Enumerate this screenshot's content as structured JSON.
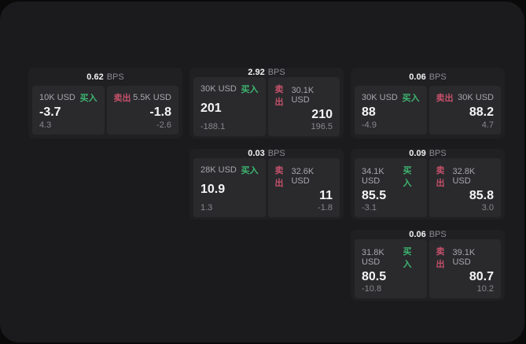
{
  "page": {
    "background": "#0a0a0a",
    "surface_background": "#1b1b1d"
  },
  "colors": {
    "buy_accent": "#3db670",
    "sell_accent": "#c4506a",
    "card_background": "#202023",
    "panel_background": "#2a2a2d",
    "primary_text": "#f5f5f6",
    "muted_text": "#8b8b90"
  },
  "labels": {
    "bps_unit": "BPS",
    "buy": "买入",
    "sell": "卖出"
  },
  "cards": [
    {
      "col": 1,
      "row": 1,
      "bps": "0.62",
      "buy": {
        "amount": "10K USD",
        "price": "-3.7",
        "delta": "4.3"
      },
      "sell": {
        "amount": "5.5K USD",
        "price": "-1.8",
        "delta": "-2.6"
      }
    },
    {
      "col": 2,
      "row": 1,
      "bps": "2.92",
      "buy": {
        "amount": "30K USD",
        "price": "201",
        "delta": "-188.1"
      },
      "sell": {
        "amount": "30.1K USD",
        "price": "210",
        "delta": "196.5"
      }
    },
    {
      "col": 3,
      "row": 1,
      "bps": "0.06",
      "buy": {
        "amount": "30K USD",
        "price": "88",
        "delta": "-4.9"
      },
      "sell": {
        "amount": "30K USD",
        "price": "88.2",
        "delta": "4.7"
      }
    },
    {
      "col": 2,
      "row": 2,
      "bps": "0.03",
      "buy": {
        "amount": "28K USD",
        "price": "10.9",
        "delta": "1.3"
      },
      "sell": {
        "amount": "32.6K USD",
        "price": "11",
        "delta": "-1.8"
      }
    },
    {
      "col": 3,
      "row": 2,
      "bps": "0.09",
      "buy": {
        "amount": "34.1K USD",
        "price": "85.5",
        "delta": "-3.1"
      },
      "sell": {
        "amount": "32.8K USD",
        "price": "85.8",
        "delta": "3.0"
      }
    },
    {
      "col": 3,
      "row": 3,
      "bps": "0.06",
      "buy": {
        "amount": "31.8K USD",
        "price": "80.5",
        "delta": "-10.8"
      },
      "sell": {
        "amount": "39.1K USD",
        "price": "80.7",
        "delta": "10.2"
      }
    }
  ]
}
